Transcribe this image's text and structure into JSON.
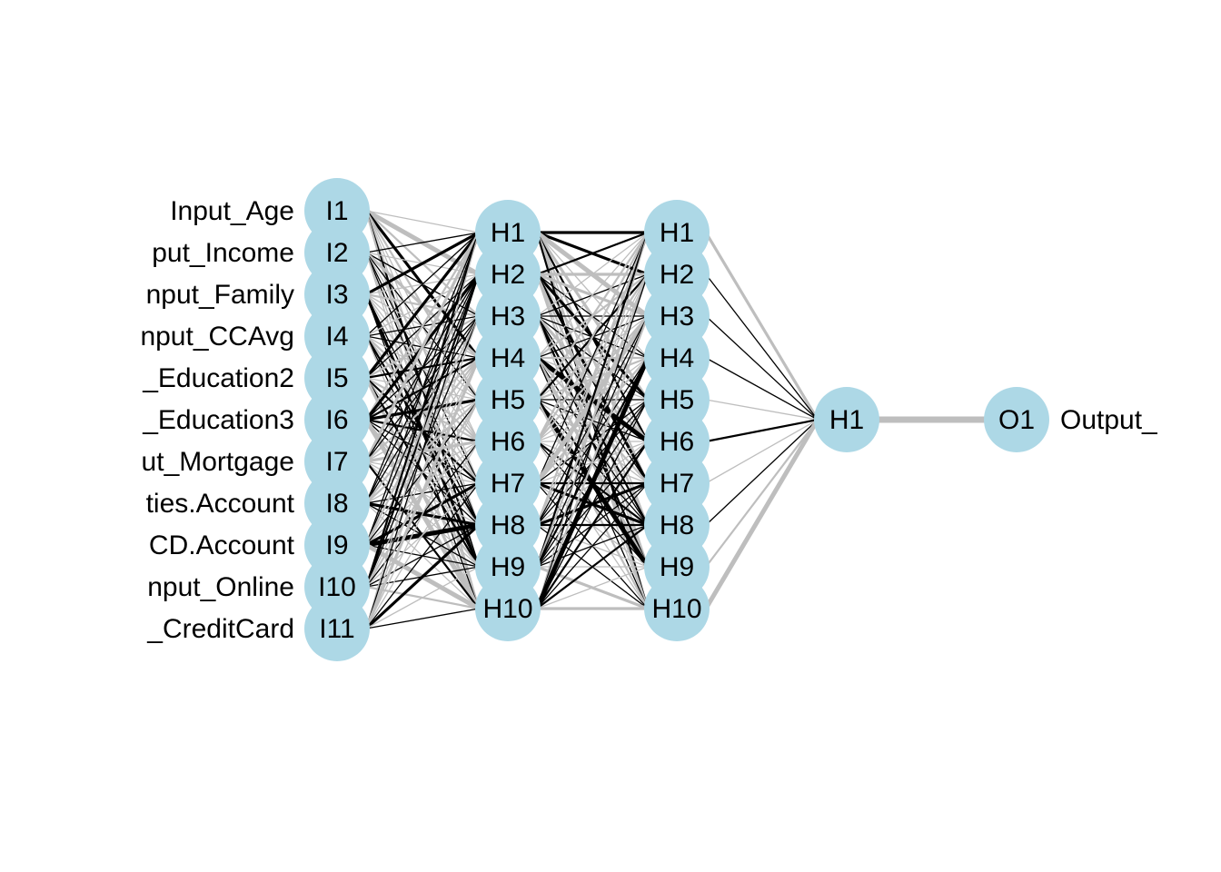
{
  "colors": {
    "node_fill": "#ADD8E6",
    "positive_edge": "#000000",
    "negative_edge": "#BEBEBE",
    "label_text": "#000000",
    "background": "#FFFFFF"
  },
  "layers": [
    {
      "name": "input",
      "nodes": [
        "I1",
        "I2",
        "I3",
        "I4",
        "I5",
        "I6",
        "I7",
        "I8",
        "I9",
        "I10",
        "I11"
      ]
    },
    {
      "name": "hidden1",
      "nodes": [
        "H1",
        "H2",
        "H3",
        "H4",
        "H5",
        "H6",
        "H7",
        "H8",
        "H9",
        "H10"
      ]
    },
    {
      "name": "hidden2",
      "nodes": [
        "H1",
        "H2",
        "H3",
        "H4",
        "H5",
        "H6",
        "H7",
        "H8",
        "H9",
        "H10"
      ]
    },
    {
      "name": "hidden3",
      "nodes": [
        "H1"
      ]
    },
    {
      "name": "output",
      "nodes": [
        "O1"
      ]
    }
  ],
  "input_labels": [
    "Input_Age",
    "put_Income",
    "nput_Family",
    "nput_CCAvg",
    "_Education2",
    "_Education3",
    "ut_Mortgage",
    "ties.Account",
    "CD.Account",
    "nput_Online",
    "_CreditCard"
  ],
  "output_labels": [
    "Output_"
  ]
}
